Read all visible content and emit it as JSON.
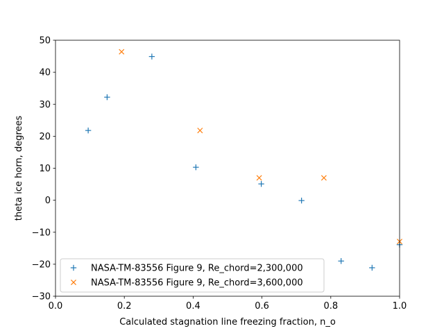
{
  "chart_data": {
    "type": "scatter",
    "title": "",
    "xlabel": "Calculated stagnation line freezing fraction, n_o",
    "ylabel": "theta ice horn, degrees",
    "xlim": [
      0.0,
      1.0
    ],
    "ylim": [
      -30,
      50
    ],
    "xticks": [
      "0.0",
      "0.2",
      "0.4",
      "0.6",
      "0.8",
      "1.0"
    ],
    "yticks": [
      "−30",
      "−20",
      "−10",
      "0",
      "10",
      "20",
      "30",
      "40",
      "50"
    ],
    "grid": false,
    "legend_position": "lower-left",
    "series": [
      {
        "name": "NASA-TM-83556 Figure 9, Re_chord=2,300,000",
        "marker": "plus",
        "color": "#1f77b4",
        "x": [
          0.095,
          0.15,
          0.28,
          0.408,
          0.598,
          0.715,
          0.83,
          0.92,
          1.0
        ],
        "y": [
          21.8,
          32.2,
          44.9,
          10.3,
          5.1,
          -0.1,
          -19.0,
          -21.1,
          -13.9
        ]
      },
      {
        "name": "NASA-TM-83556 Figure 9, Re_chord=3,600,000",
        "marker": "x",
        "color": "#ff7f0e",
        "x": [
          0.192,
          0.42,
          0.592,
          0.78,
          1.0
        ],
        "y": [
          46.4,
          21.8,
          7.0,
          7.0,
          -12.9
        ]
      }
    ]
  }
}
